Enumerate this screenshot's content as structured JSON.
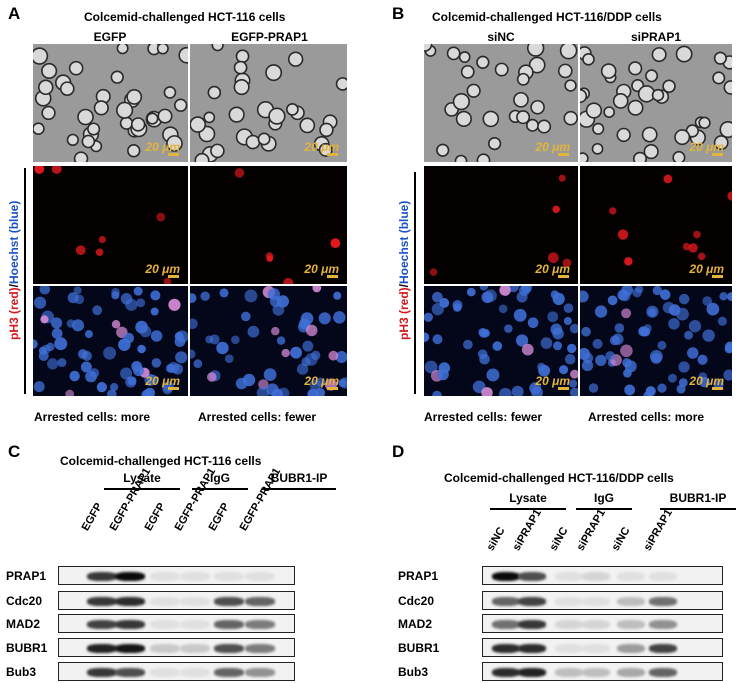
{
  "panels": {
    "A": {
      "letter": "A",
      "title": "Colcemid-challenged HCT-116 cells",
      "columns": [
        "EGFP",
        "EGFP-PRAP1"
      ],
      "scale_label": "20 μm",
      "stain_label": {
        "red": "pH3 (red)",
        "sep": "/",
        "blue": "Hoechst (blue)"
      },
      "captions": [
        "Arrested cells: more",
        "Arrested cells: fewer"
      ]
    },
    "B": {
      "letter": "B",
      "title": "Colcemid-challenged HCT-116/DDP cells",
      "columns": [
        "siNC",
        "siPRAP1"
      ],
      "scale_label": "20 μm",
      "stain_label": {
        "red": "pH3 (red)",
        "sep": "/",
        "blue": "Hoechst (blue)"
      },
      "captions": [
        "Arrested cells: fewer",
        "Arrested cells: more"
      ]
    },
    "C": {
      "letter": "C",
      "title": "Colcemid-challenged HCT-116 cells",
      "groups": [
        "Lysate",
        "IgG",
        "BUBR1-IP"
      ],
      "lanes": [
        "EGFP",
        "EGFP-PRAP1",
        "EGFP",
        "EGFP-PRAP1",
        "EGFP",
        "EGFP-PRAP1"
      ],
      "rows": [
        "PRAP1",
        "Cdc20",
        "MAD2",
        "BUBR1",
        "Bub3"
      ]
    },
    "D": {
      "letter": "D",
      "title": "Colcemid-challenged HCT-116/DDP cells",
      "groups": [
        "Lysate",
        "IgG",
        "BUBR1-IP"
      ],
      "lanes": [
        "siNC",
        "siPRAP1",
        "siNC",
        "siPRAP1",
        "siNC",
        "siPRAP1"
      ],
      "rows": [
        "PRAP1",
        "Cdc20",
        "MAD2",
        "BUBR1",
        "Bub3"
      ]
    }
  },
  "colors": {
    "red_stain": "#d4171f",
    "blue_stain": "#1a52c7",
    "scale_bar": "#e3b43a"
  },
  "blots": {
    "C": [
      [
        0.8,
        1.0,
        0.05,
        0.05,
        0.05,
        0.05
      ],
      [
        0.8,
        0.85,
        0.05,
        0.05,
        0.7,
        0.6
      ],
      [
        0.75,
        0.8,
        0.05,
        0.05,
        0.6,
        0.5
      ],
      [
        0.9,
        0.95,
        0.15,
        0.15,
        0.7,
        0.5
      ],
      [
        0.8,
        0.7,
        0.05,
        0.05,
        0.6,
        0.4
      ]
    ],
    "D": [
      [
        1.0,
        0.7,
        0.05,
        0.1,
        0.05,
        0.05
      ],
      [
        0.6,
        0.75,
        0.05,
        0.05,
        0.2,
        0.55
      ],
      [
        0.55,
        0.8,
        0.1,
        0.1,
        0.2,
        0.4
      ],
      [
        0.85,
        0.85,
        0.05,
        0.05,
        0.35,
        0.75
      ],
      [
        0.85,
        0.9,
        0.2,
        0.2,
        0.3,
        0.6
      ]
    ]
  }
}
